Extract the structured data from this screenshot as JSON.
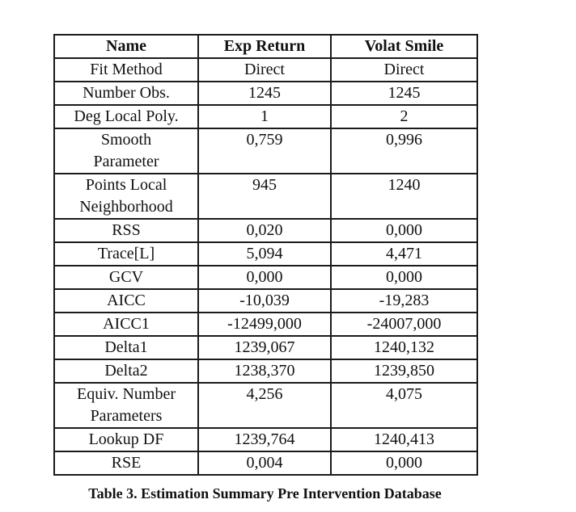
{
  "colors": {
    "background": "#ffffff",
    "border": "#1a1a1a",
    "text": "#111111"
  },
  "table": {
    "caption": "Table 3. Estimation Summary Pre Intervention Database",
    "columns": [
      "Name",
      "Exp Return",
      "Volat Smile"
    ],
    "rows": [
      {
        "name_lines": [
          "Fit Method"
        ],
        "values": [
          "Direct",
          "Direct"
        ]
      },
      {
        "name_lines": [
          "Number Obs."
        ],
        "values": [
          "1245",
          "1245"
        ]
      },
      {
        "name_lines": [
          "Deg Local Poly."
        ],
        "values": [
          "1",
          "2"
        ]
      },
      {
        "name_lines": [
          "Smooth",
          "Parameter"
        ],
        "values": [
          "0,759",
          "0,996"
        ]
      },
      {
        "name_lines": [
          "Points Local",
          "Neighborhood"
        ],
        "values": [
          "945",
          "1240"
        ]
      },
      {
        "name_lines": [
          "RSS"
        ],
        "values": [
          "0,020",
          "0,000"
        ]
      },
      {
        "name_lines": [
          "Trace[L]"
        ],
        "values": [
          "5,094",
          "4,471"
        ]
      },
      {
        "name_lines": [
          "GCV"
        ],
        "values": [
          "0,000",
          "0,000"
        ]
      },
      {
        "name_lines": [
          "AICC"
        ],
        "values": [
          "-10,039",
          "-19,283"
        ]
      },
      {
        "name_lines": [
          "AICC1"
        ],
        "values": [
          "-12499,000",
          "-24007,000"
        ]
      },
      {
        "name_lines": [
          "Delta1"
        ],
        "values": [
          "1239,067",
          "1240,132"
        ]
      },
      {
        "name_lines": [
          "Delta2"
        ],
        "values": [
          "1238,370",
          "1239,850"
        ]
      },
      {
        "name_lines": [
          "Equiv. Number",
          "Parameters"
        ],
        "values": [
          "4,256",
          "4,075"
        ]
      },
      {
        "name_lines": [
          "Lookup DF"
        ],
        "values": [
          "1239,764",
          "1240,413"
        ]
      },
      {
        "name_lines": [
          "RSE"
        ],
        "values": [
          "0,004",
          "0,000"
        ]
      }
    ]
  }
}
